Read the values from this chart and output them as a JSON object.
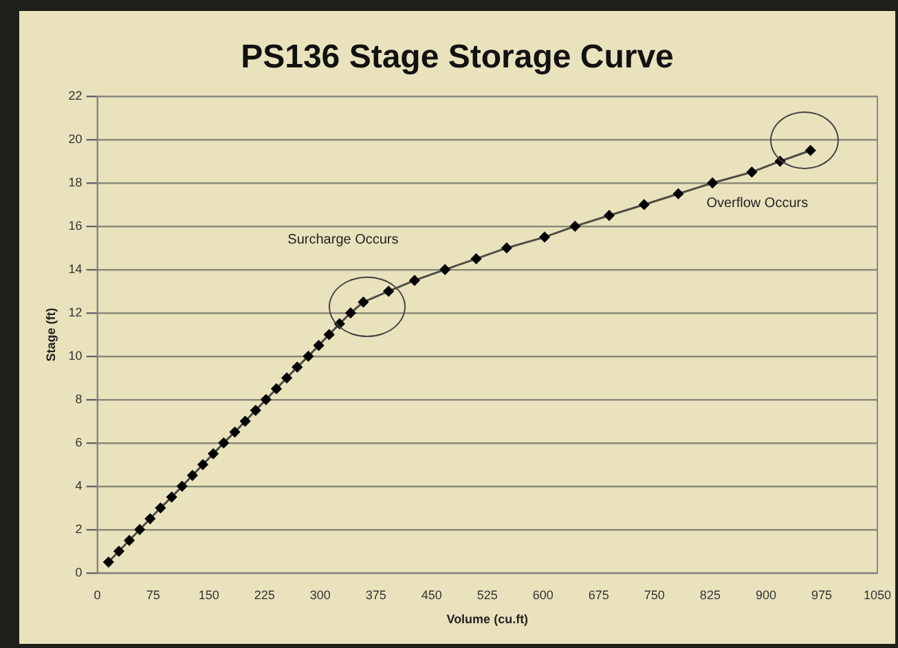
{
  "chart_data": {
    "type": "line",
    "title": "PS136 Stage Storage Curve",
    "xlabel": "Volume (cu.ft)",
    "ylabel": "Stage (ft)",
    "x": [
      15,
      29,
      43,
      57,
      71,
      85,
      100,
      114,
      128,
      142,
      156,
      170,
      185,
      199,
      213,
      227,
      241,
      255,
      269,
      284,
      298,
      312,
      326,
      341,
      358,
      392,
      427,
      468,
      510,
      551,
      602,
      643,
      689,
      736,
      782,
      828,
      881,
      919,
      960
    ],
    "series": [
      {
        "color": "#4d4d44",
        "values": [
          0.5,
          1,
          1.5,
          2,
          2.5,
          3,
          3.5,
          4,
          4.5,
          5,
          5.5,
          6,
          6.5,
          7,
          7.5,
          8,
          8.5,
          9,
          9.5,
          10,
          10.5,
          11,
          11.5,
          12,
          12.5,
          13,
          13.5,
          14,
          14.5,
          15,
          15.5,
          16,
          16.5,
          17,
          17.5,
          18,
          18.5,
          19,
          19.5
        ]
      }
    ],
    "xlim": [
      0,
      1050
    ],
    "xticks": [
      0,
      75,
      150,
      225,
      300,
      375,
      450,
      525,
      600,
      675,
      750,
      825,
      900,
      975,
      1050
    ],
    "ylim": [
      0,
      22
    ],
    "yticks": [
      0,
      2,
      4,
      6,
      8,
      10,
      12,
      14,
      16,
      18,
      20,
      22
    ],
    "grid": "y",
    "legend": false,
    "marker": "diamond",
    "line_style": "solid",
    "annotations": [
      "Surcharge Occurs",
      "Overflow Occurs"
    ]
  }
}
